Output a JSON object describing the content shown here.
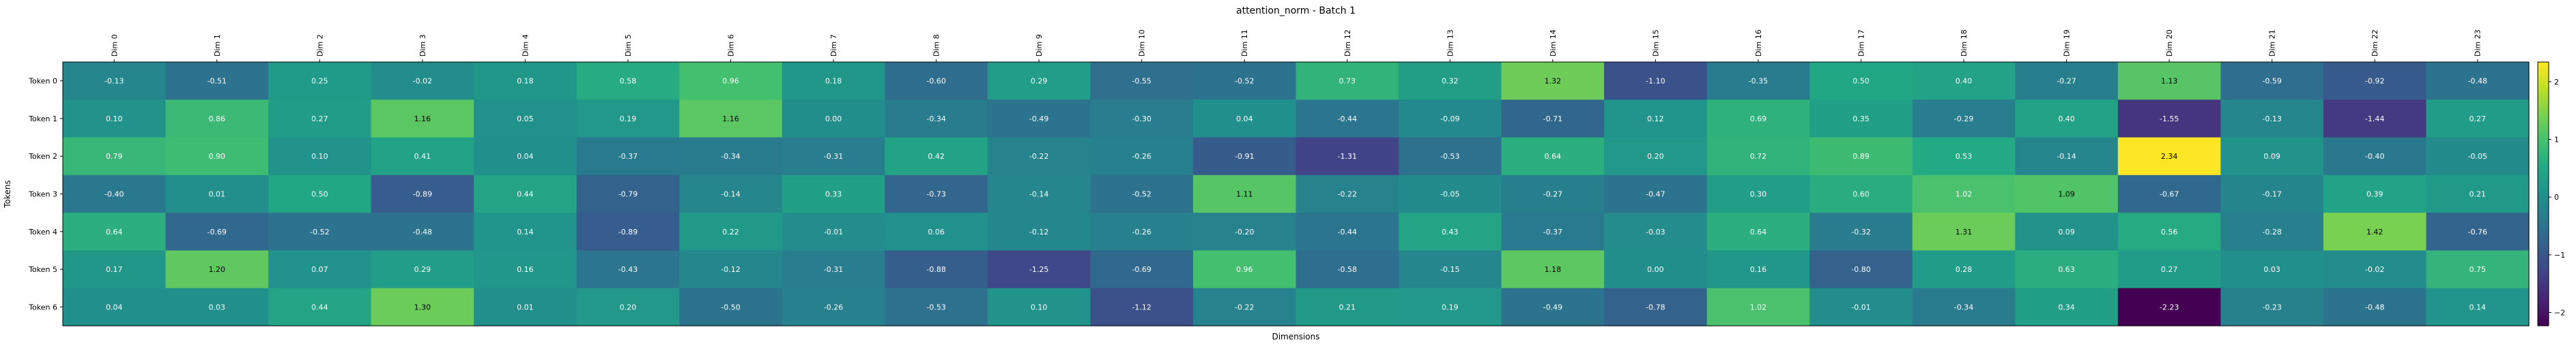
{
  "chart_data": {
    "type": "heatmap",
    "title": "attention_norm - Batch 1",
    "xlabel": "Dimensions",
    "ylabel": "Tokens",
    "x_categories": [
      "Dim 0",
      "Dim 1",
      "Dim 2",
      "Dim 3",
      "Dim 4",
      "Dim 5",
      "Dim 6",
      "Dim 7",
      "Dim 8",
      "Dim 9",
      "Dim 10",
      "Dim 11",
      "Dim 12",
      "Dim 13",
      "Dim 14",
      "Dim 15",
      "Dim 16",
      "Dim 17",
      "Dim 18",
      "Dim 19",
      "Dim 20",
      "Dim 21",
      "Dim 22",
      "Dim 23"
    ],
    "y_categories": [
      "Token 0",
      "Token 1",
      "Token 2",
      "Token 3",
      "Token 4",
      "Token 5",
      "Token 6"
    ],
    "values": [
      [
        -0.13,
        -0.51,
        0.25,
        -0.02,
        0.18,
        0.58,
        0.96,
        0.18,
        -0.6,
        0.29,
        -0.55,
        -0.52,
        0.73,
        0.32,
        1.32,
        -1.1,
        -0.35,
        0.5,
        0.4,
        -0.27,
        1.13,
        -0.59,
        -0.92,
        -0.48
      ],
      [
        0.1,
        0.86,
        0.27,
        1.16,
        0.05,
        0.19,
        1.16,
        0.0,
        -0.34,
        -0.49,
        -0.3,
        0.04,
        -0.44,
        -0.09,
        -0.71,
        0.12,
        0.69,
        0.35,
        -0.29,
        0.4,
        -1.55,
        -0.13,
        -1.44,
        0.27
      ],
      [
        0.79,
        0.9,
        0.1,
        0.41,
        0.04,
        -0.37,
        -0.34,
        -0.31,
        0.42,
        -0.22,
        -0.26,
        -0.91,
        -1.31,
        -0.53,
        0.64,
        0.2,
        0.72,
        0.89,
        0.53,
        -0.14,
        2.34,
        0.09,
        -0.4,
        -0.05
      ],
      [
        -0.4,
        0.01,
        0.5,
        -0.89,
        0.44,
        -0.79,
        -0.14,
        0.33,
        -0.73,
        -0.14,
        -0.52,
        1.11,
        -0.22,
        -0.05,
        -0.27,
        -0.47,
        0.3,
        0.6,
        1.02,
        1.09,
        -0.67,
        -0.17,
        0.39,
        0.21
      ],
      [
        0.64,
        -0.69,
        -0.52,
        -0.48,
        0.14,
        -0.89,
        0.22,
        -0.01,
        0.06,
        -0.12,
        -0.26,
        -0.2,
        -0.44,
        0.43,
        -0.37,
        -0.03,
        0.64,
        -0.32,
        1.31,
        0.09,
        0.56,
        -0.28,
        1.42,
        -0.76
      ],
      [
        0.17,
        1.2,
        0.07,
        0.29,
        0.16,
        -0.43,
        -0.12,
        -0.31,
        -0.88,
        -1.25,
        -0.69,
        0.96,
        -0.58,
        -0.15,
        1.18,
        0.0,
        0.16,
        -0.8,
        0.28,
        0.63,
        0.27,
        0.03,
        -0.02,
        0.75
      ],
      [
        0.04,
        0.03,
        0.44,
        1.3,
        0.01,
        0.2,
        -0.5,
        -0.26,
        -0.53,
        0.1,
        -1.12,
        -0.22,
        0.21,
        0.19,
        -0.49,
        -0.78,
        1.02,
        -0.01,
        -0.34,
        0.34,
        -2.23,
        -0.23,
        -0.48,
        0.14
      ]
    ],
    "vmin": -2.23,
    "vmax": 2.34,
    "colormap": "viridis",
    "colorbar_ticks": [
      -2,
      -1,
      0,
      1,
      2
    ],
    "colorbar_tick_labels": [
      "−2",
      "−1",
      "0",
      "1",
      "2"
    ],
    "x_tick_rotation": "vertical",
    "grid": false
  }
}
